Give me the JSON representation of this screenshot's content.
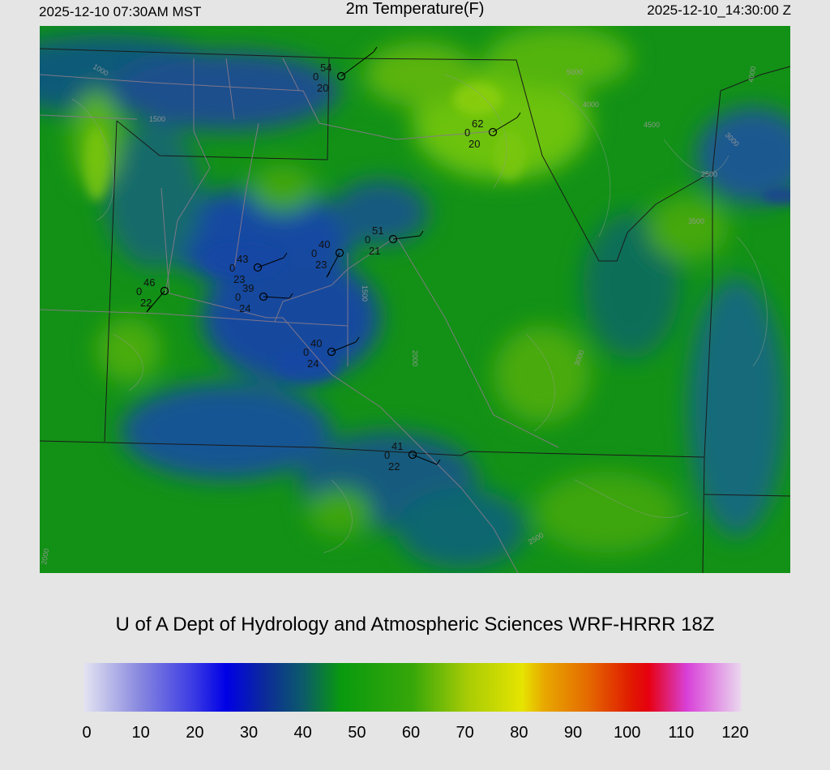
{
  "header": {
    "local_time": "2025-12-10 07:30AM MST",
    "title": "2m Temperature(F)",
    "valid_time": "2025-12-10_14:30:00 Z"
  },
  "credit": "U of A Dept of Hydrology and Atmospheric Sciences WRF-HRRR 18Z",
  "colorbar": {
    "min": 0,
    "max": 120,
    "tick_labels": [
      "0",
      "10",
      "20",
      "30",
      "40",
      "50",
      "60",
      "70",
      "80",
      "90",
      "100",
      "110",
      "120"
    ],
    "color_stops": [
      {
        "value": 0,
        "color": "#e4e4f2"
      },
      {
        "value": 10,
        "color": "#8a8ae0"
      },
      {
        "value": 20,
        "color": "#3b3be4"
      },
      {
        "value": 26,
        "color": "#0000e6"
      },
      {
        "value": 33,
        "color": "#0c2a9a"
      },
      {
        "value": 40,
        "color": "#0c5a6a"
      },
      {
        "value": 47,
        "color": "#099a0e"
      },
      {
        "value": 60,
        "color": "#37a70a"
      },
      {
        "value": 70,
        "color": "#a7cc05"
      },
      {
        "value": 80,
        "color": "#e6e400"
      },
      {
        "value": 84,
        "color": "#e8a800"
      },
      {
        "value": 92,
        "color": "#e46a00"
      },
      {
        "value": 100,
        "color": "#e01800"
      },
      {
        "value": 103,
        "color": "#e60010"
      },
      {
        "value": 110,
        "color": "#d840d8"
      },
      {
        "value": 120,
        "color": "#eadaee"
      }
    ]
  },
  "stations": [
    {
      "temp": "54",
      "wind": "0",
      "dew": "20"
    },
    {
      "temp": "62",
      "wind": "0",
      "dew": "20"
    },
    {
      "temp": "51",
      "wind": "0",
      "dew": "21"
    },
    {
      "temp": "40",
      "wind": "0",
      "dew": "23"
    },
    {
      "temp": "43",
      "wind": "0",
      "dew": "23"
    },
    {
      "temp": "39",
      "wind": "0",
      "dew": "24"
    },
    {
      "temp": "46",
      "wind": "0",
      "dew": "22"
    },
    {
      "temp": "40",
      "wind": "0",
      "dew": "24"
    },
    {
      "temp": "41",
      "wind": "0",
      "dew": "22"
    }
  ],
  "contour_labels": [
    "1000",
    "1500",
    "2000",
    "2500",
    "3000",
    "3500",
    "4000",
    "4500",
    "5000"
  ]
}
